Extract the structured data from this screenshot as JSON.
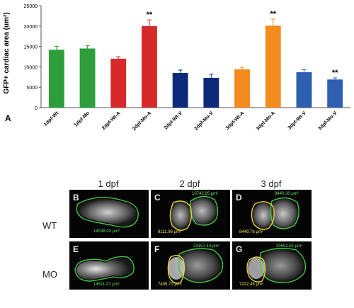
{
  "chart_data": {
    "type": "bar",
    "ylabel": "GFP+ cardiac area (um²)",
    "ylim": [
      0,
      25000
    ],
    "yticks": [
      "0",
      "5000",
      "10000",
      "15000",
      "20000",
      "25000"
    ],
    "categories": [
      "1dpf-Wt",
      "1dpf-Mo",
      "2dpf-Wt-A",
      "2dpf-Mo-A",
      "2dpf-Wt-V",
      "2dpf-Mo-V",
      "3dpf-Wt-A",
      "3dpf-Mo-A",
      "3dpf-Wt-V",
      "3dpf-Mo-V"
    ],
    "values": [
      14200,
      14500,
      12000,
      20000,
      8500,
      7300,
      9400,
      20100,
      8700,
      6900
    ],
    "errors": [
      800,
      700,
      500,
      1500,
      700,
      900,
      500,
      1600,
      600,
      400
    ],
    "colors": [
      "#2e9e3a",
      "#2e9e3a",
      "#d62a2a",
      "#d62a2a",
      "#0d2a7a",
      "#0d2a7a",
      "#f28c1e",
      "#f28c1e",
      "#2f5fb0",
      "#2f5fb0"
    ],
    "significance": [
      "",
      "",
      "",
      "**",
      "",
      "",
      "",
      "**",
      "",
      "**"
    ],
    "grid": false
  },
  "figure": {
    "panel_label": "A",
    "columns": [
      "1 dpf",
      "2 dpf",
      "3 dpf"
    ],
    "rows": [
      "WT",
      "MO"
    ],
    "panels": [
      {
        "letter": "B",
        "labels": [
          {
            "text": "14038.02 μm²",
            "color": "#66dd66"
          }
        ]
      },
      {
        "letter": "C",
        "labels": [
          {
            "text": "10743.95 μm²",
            "color": "#66dd66"
          },
          {
            "text": "9111.06 μm²",
            "color": "#f0e24a"
          }
        ]
      },
      {
        "letter": "D",
        "labels": [
          {
            "text": "8440.30 μm²",
            "color": "#66dd66"
          },
          {
            "text": "8449.78 μm²",
            "color": "#f0e24a"
          }
        ]
      },
      {
        "letter": "E",
        "labels": [
          {
            "text": "14511.27 μm²",
            "color": "#66dd66"
          }
        ]
      },
      {
        "letter": "F",
        "labels": [
          {
            "text": "23157.44 μm²",
            "color": "#66dd66"
          },
          {
            "text": "7405.71 μm²",
            "color": "#f0e24a"
          }
        ]
      },
      {
        "letter": "G",
        "labels": [
          {
            "text": "20692.61 μm²",
            "color": "#66dd66"
          },
          {
            "text": "7222.45 μm²",
            "color": "#f0e24a"
          }
        ]
      }
    ]
  }
}
